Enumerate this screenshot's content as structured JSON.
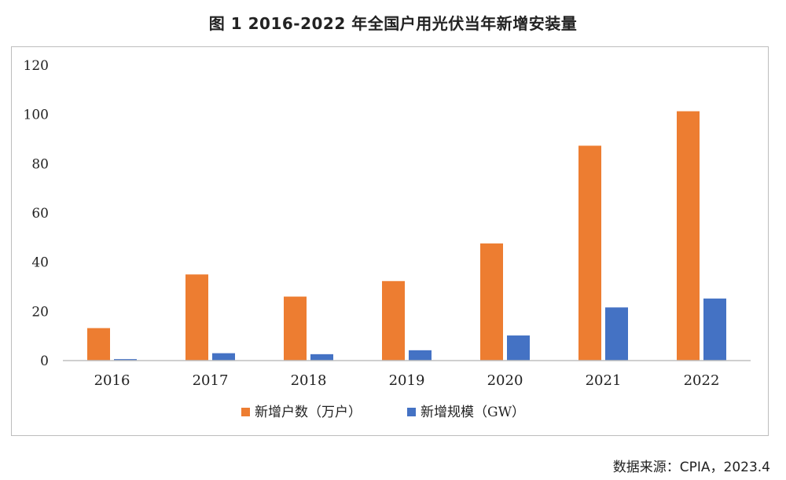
{
  "title": "图 1 2016-2022 年全国户用光伏当年新增安装量",
  "source": "数据来源：CPIA，2023.4",
  "colors": {
    "orange": "#ED7D31",
    "blue": "#4472C4",
    "axis": "#bfbfbf"
  },
  "chart_data": {
    "type": "bar",
    "categories": [
      "2016",
      "2017",
      "2018",
      "2019",
      "2020",
      "2021",
      "2022"
    ],
    "series": [
      {
        "name": "新增户数（万户）",
        "values": [
          13.2,
          35,
          26,
          32.3,
          47.6,
          87.3,
          101.3
        ]
      },
      {
        "name": "新增规模（GW）",
        "values": [
          0.6,
          3,
          2.6,
          4.2,
          10.2,
          21.6,
          25.2
        ]
      }
    ],
    "ylim": [
      0,
      120
    ],
    "yticks": [
      0,
      20,
      40,
      60,
      80,
      100,
      120
    ],
    "legend": "bottom",
    "grid": false
  }
}
